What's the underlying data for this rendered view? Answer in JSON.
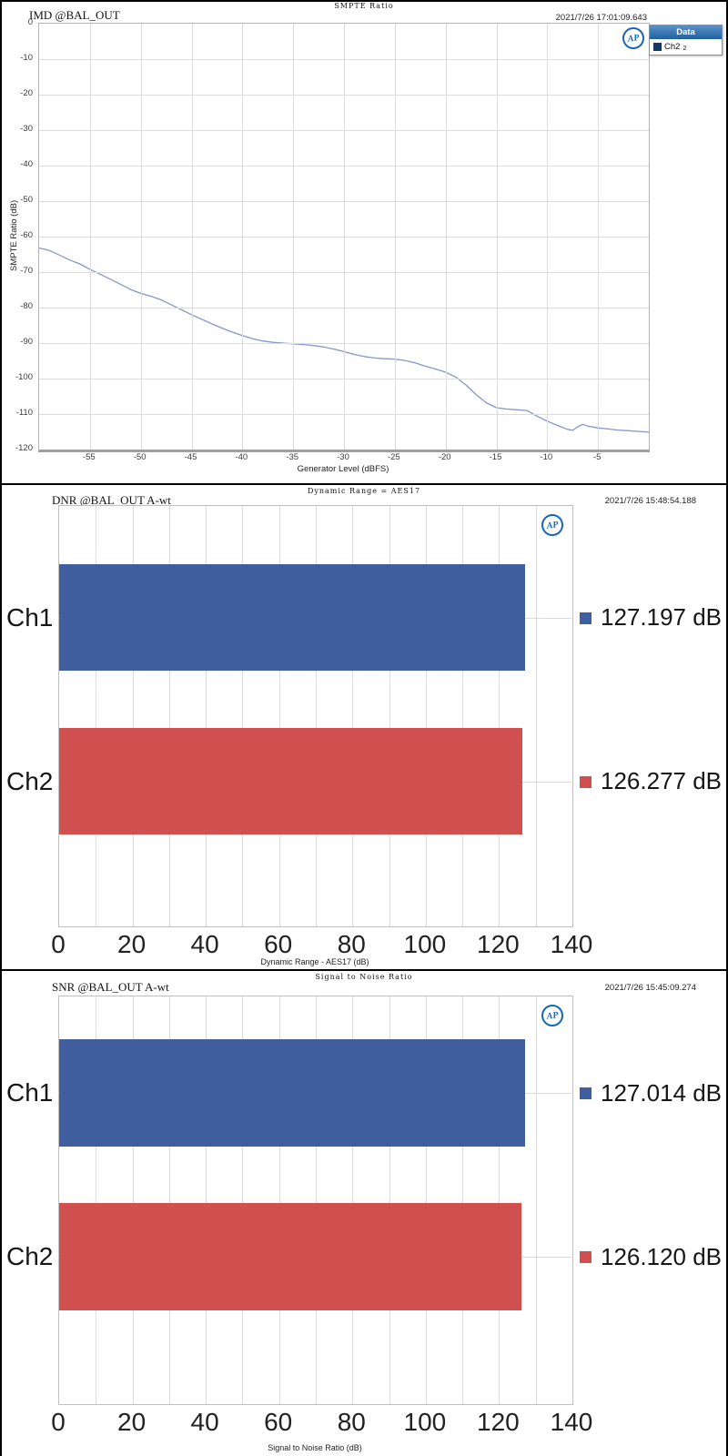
{
  "logo": {
    "text": "AP"
  },
  "chart_data": [
    {
      "type": "line",
      "panel_header": "SMPTE Ratio",
      "title": "IMD @BAL_OUT",
      "timestamp": "2021/7/26 17:01:09.643",
      "xlabel": "Generator Level (dBFS)",
      "ylabel": "SMPTE Ratio (dB)",
      "xlim": [
        -60,
        0
      ],
      "ylim": [
        -120,
        0
      ],
      "xticks": [
        -55,
        -50,
        -45,
        -40,
        -35,
        -30,
        -25,
        -20,
        -15,
        -10,
        -5
      ],
      "yticks": [
        0,
        -10,
        -20,
        -30,
        -40,
        -50,
        -60,
        -70,
        -80,
        -90,
        -100,
        -110,
        -120
      ],
      "grid": true,
      "legend": {
        "header": "Data",
        "position": "top-right-outside",
        "items": [
          {
            "label": "Ch2",
            "sub": "2",
            "swatch": "#17375e"
          }
        ]
      },
      "series": [
        {
          "name": "Ch2",
          "color": "#8697c8",
          "points": [
            [
              -60,
              -63.2
            ],
            [
              -59,
              -63.9
            ],
            [
              -58,
              -65.2
            ],
            [
              -57,
              -66.6
            ],
            [
              -56,
              -67.7
            ],
            [
              -55,
              -69.2
            ],
            [
              -54,
              -70.6
            ],
            [
              -53,
              -72.0
            ],
            [
              -52,
              -73.4
            ],
            [
              -51,
              -74.9
            ],
            [
              -50,
              -76.0
            ],
            [
              -49,
              -76.8
            ],
            [
              -48,
              -77.8
            ],
            [
              -47,
              -79.2
            ],
            [
              -46,
              -80.6
            ],
            [
              -45,
              -82.0
            ],
            [
              -44,
              -83.3
            ],
            [
              -43,
              -84.6
            ],
            [
              -42,
              -85.8
            ],
            [
              -41,
              -86.9
            ],
            [
              -40,
              -87.9
            ],
            [
              -39,
              -88.8
            ],
            [
              -38,
              -89.4
            ],
            [
              -37,
              -89.8
            ],
            [
              -36,
              -90.0
            ],
            [
              -35,
              -90.2
            ],
            [
              -34,
              -90.4
            ],
            [
              -33,
              -90.7
            ],
            [
              -32,
              -91.1
            ],
            [
              -31,
              -91.7
            ],
            [
              -30,
              -92.4
            ],
            [
              -29,
              -93.2
            ],
            [
              -28,
              -93.8
            ],
            [
              -27,
              -94.2
            ],
            [
              -26,
              -94.4
            ],
            [
              -25,
              -94.5
            ],
            [
              -24,
              -94.9
            ],
            [
              -23,
              -95.6
            ],
            [
              -22,
              -96.5
            ],
            [
              -21,
              -97.3
            ],
            [
              -20,
              -98.2
            ],
            [
              -19,
              -99.6
            ],
            [
              -18,
              -101.8
            ],
            [
              -17,
              -104.5
            ],
            [
              -16,
              -106.8
            ],
            [
              -15,
              -108.2
            ],
            [
              -14,
              -108.6
            ],
            [
              -13,
              -108.8
            ],
            [
              -12,
              -109.0
            ],
            [
              -11,
              -110.6
            ],
            [
              -10,
              -112.0
            ],
            [
              -9,
              -113.2
            ],
            [
              -8,
              -114.3
            ],
            [
              -7.5,
              -114.6
            ],
            [
              -7,
              -113.6
            ],
            [
              -6.5,
              -112.9
            ],
            [
              -6,
              -113.4
            ],
            [
              -5,
              -113.9
            ],
            [
              -4,
              -114.2
            ],
            [
              -3,
              -114.5
            ],
            [
              -2,
              -114.7
            ],
            [
              -1,
              -114.9
            ],
            [
              0,
              -115.1
            ]
          ]
        }
      ]
    },
    {
      "type": "bar",
      "orientation": "horizontal",
      "panel_header": "Dynamic Range = AES17",
      "title": "DNR @BAL_OUT A-wt",
      "timestamp": "2021/7/26 15:48:54.188",
      "xlabel": "Dynamic Range - AES17 (dB)",
      "categories": [
        "Ch1",
        "Ch2"
      ],
      "values": [
        127.197,
        126.277
      ],
      "value_labels": [
        "127.197 dB",
        "126.277 dB"
      ],
      "colors": [
        "#3f5f9e",
        "#cf504e"
      ],
      "xlim": [
        0,
        140
      ],
      "xticks": [
        0,
        20,
        40,
        60,
        80,
        100,
        120,
        140
      ],
      "grid_step": 10
    },
    {
      "type": "bar",
      "orientation": "horizontal",
      "panel_header": "Signal to Noise Ratio",
      "title": "SNR @BAL_OUT A-wt",
      "timestamp": "2021/7/26 15:45:09.274",
      "xlabel": "Signal to Noise Ratio (dB)",
      "categories": [
        "Ch1",
        "Ch2"
      ],
      "values": [
        127.014,
        126.12
      ],
      "value_labels": [
        "127.014 dB",
        "126.120 dB"
      ],
      "colors": [
        "#3f5f9e",
        "#cf504e"
      ],
      "xlim": [
        0,
        140
      ],
      "xticks": [
        0,
        20,
        40,
        60,
        80,
        100,
        120,
        140
      ],
      "grid_step": 10
    }
  ]
}
